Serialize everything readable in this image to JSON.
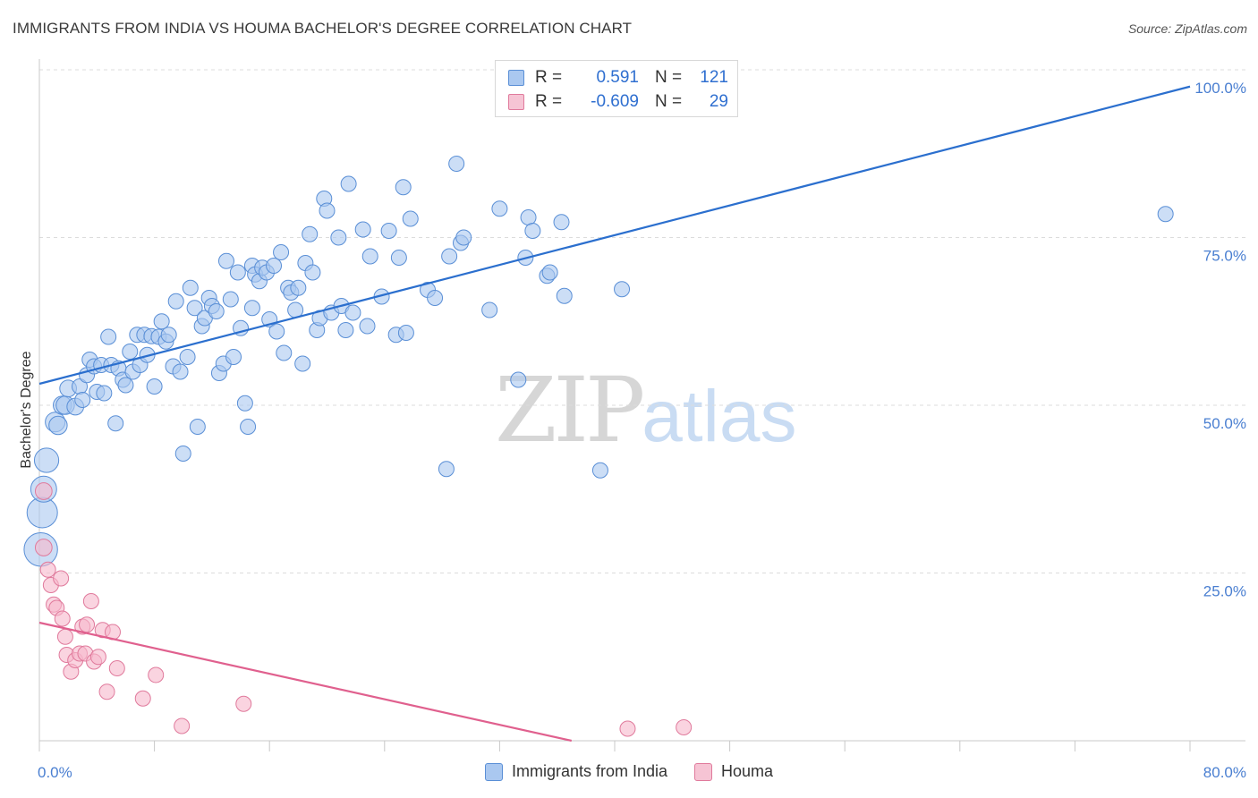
{
  "title": "IMMIGRANTS FROM INDIA VS HOUMA BACHELOR'S DEGREE CORRELATION CHART",
  "source": "Source: ZipAtlas.com",
  "watermark": {
    "zip": "ZIP",
    "atlas": "atlas"
  },
  "legend": {
    "row1": {
      "r_label": "R =",
      "r_value": "0.591",
      "n_label": "N =",
      "n_value": "121"
    },
    "row2": {
      "r_label": "R =",
      "r_value": "-0.609",
      "n_label": "N =",
      "n_value": "29"
    }
  },
  "bottom_legend": {
    "india": "Immigrants from India",
    "houma": "Houma"
  },
  "colors": {
    "india_fill": "#aac8f0",
    "india_stroke": "#5a8fd6",
    "india_line": "#2b6fce",
    "houma_fill": "#f6b8cc",
    "houma_stroke": "#e07a9c",
    "houma_line": "#e0608e",
    "grid": "#dcdcdc",
    "tick_text": "#4a7fd1"
  },
  "chart_data": {
    "type": "scatter",
    "title": "IMMIGRANTS FROM INDIA VS HOUMA BACHELOR'S DEGREE CORRELATION CHART",
    "xlabel": "",
    "ylabel": "Bachelor's Degree",
    "xlim": [
      0,
      80
    ],
    "ylim": [
      0,
      100
    ],
    "x_tick_labels": [
      "0.0%",
      "80.0%"
    ],
    "y_tick_labels": [
      "25.0%",
      "50.0%",
      "75.0%",
      "100.0%"
    ],
    "y_ticks": [
      25,
      50,
      75,
      100
    ],
    "grid": true,
    "legend_position": "top-center",
    "series": [
      {
        "name": "Immigrants from India",
        "trend": {
          "x0": 0,
          "y0": 53.2,
          "x1": 80,
          "y1": 97.5
        },
        "points": [
          [
            0.1,
            28.5,
            2.2
          ],
          [
            0.2,
            34.0,
            2.0
          ],
          [
            0.3,
            37.5,
            1.7
          ],
          [
            0.5,
            41.8,
            1.6
          ],
          [
            1.1,
            47.5,
            1.3
          ],
          [
            1.3,
            47.0,
            1.2
          ],
          [
            1.6,
            50.0,
            1.2
          ],
          [
            1.8,
            50.0,
            1.2
          ],
          [
            2.0,
            52.5,
            1.1
          ],
          [
            2.5,
            49.8,
            1.1
          ],
          [
            2.8,
            52.8,
            1.0
          ],
          [
            3.0,
            50.8,
            1.0
          ],
          [
            3.3,
            54.5,
            1.0
          ],
          [
            3.5,
            56.8,
            1.0
          ],
          [
            3.8,
            55.8,
            1.0
          ],
          [
            4.0,
            52.0,
            1.0
          ],
          [
            4.3,
            56.0,
            1.0
          ],
          [
            4.5,
            51.8,
            1.0
          ],
          [
            4.8,
            60.2,
            1.0
          ],
          [
            5.0,
            56.0,
            1.0
          ],
          [
            5.3,
            47.3,
            1.0
          ],
          [
            5.5,
            55.5,
            1.0
          ],
          [
            5.8,
            53.8,
            1.0
          ],
          [
            6.0,
            53.0,
            1.0
          ],
          [
            6.3,
            58.0,
            1.0
          ],
          [
            6.5,
            55.0,
            1.0
          ],
          [
            6.8,
            60.5,
            1.0
          ],
          [
            7.0,
            56.0,
            1.0
          ],
          [
            7.3,
            60.5,
            1.0
          ],
          [
            7.5,
            57.5,
            1.0
          ],
          [
            7.8,
            60.3,
            1.0
          ],
          [
            8.0,
            52.8,
            1.0
          ],
          [
            8.3,
            60.2,
            1.0
          ],
          [
            8.5,
            62.5,
            1.0
          ],
          [
            8.8,
            59.5,
            1.0
          ],
          [
            9.0,
            60.5,
            1.0
          ],
          [
            9.3,
            55.8,
            1.0
          ],
          [
            9.5,
            65.5,
            1.0
          ],
          [
            9.8,
            55.0,
            1.0
          ],
          [
            10.0,
            42.8,
            1.0
          ],
          [
            10.3,
            57.2,
            1.0
          ],
          [
            10.5,
            67.5,
            1.0
          ],
          [
            10.8,
            64.5,
            1.0
          ],
          [
            11.0,
            46.8,
            1.0
          ],
          [
            11.3,
            61.8,
            1.0
          ],
          [
            11.5,
            63.0,
            1.0
          ],
          [
            11.8,
            66.0,
            1.0
          ],
          [
            12.0,
            64.8,
            1.0
          ],
          [
            12.3,
            64.0,
            1.0
          ],
          [
            12.5,
            54.8,
            1.0
          ],
          [
            12.8,
            56.2,
            1.0
          ],
          [
            13.0,
            71.5,
            1.0
          ],
          [
            13.3,
            65.8,
            1.0
          ],
          [
            13.5,
            57.2,
            1.0
          ],
          [
            13.8,
            69.8,
            1.0
          ],
          [
            14.0,
            61.5,
            1.0
          ],
          [
            14.3,
            50.3,
            1.0
          ],
          [
            14.5,
            46.8,
            1.0
          ],
          [
            14.8,
            64.5,
            1.0
          ],
          [
            14.8,
            70.8,
            1.0
          ],
          [
            15.0,
            69.5,
            1.0
          ],
          [
            15.3,
            68.5,
            1.0
          ],
          [
            15.5,
            70.5,
            1.0
          ],
          [
            15.8,
            69.8,
            1.0
          ],
          [
            16.0,
            62.8,
            1.0
          ],
          [
            16.3,
            70.8,
            1.0
          ],
          [
            16.5,
            61.0,
            1.0
          ],
          [
            16.8,
            72.8,
            1.0
          ],
          [
            17.0,
            57.8,
            1.0
          ],
          [
            17.3,
            67.5,
            1.0
          ],
          [
            17.5,
            66.8,
            1.0
          ],
          [
            17.8,
            64.2,
            1.0
          ],
          [
            18.0,
            67.5,
            1.0
          ],
          [
            18.3,
            56.2,
            1.0
          ],
          [
            18.5,
            71.2,
            1.0
          ],
          [
            18.8,
            75.5,
            1.0
          ],
          [
            19.0,
            69.8,
            1.0
          ],
          [
            19.3,
            61.2,
            1.0
          ],
          [
            19.5,
            63.0,
            1.0
          ],
          [
            19.8,
            80.8,
            1.0
          ],
          [
            20.0,
            79.0,
            1.0
          ],
          [
            20.3,
            63.8,
            1.0
          ],
          [
            20.8,
            75.0,
            1.0
          ],
          [
            21.0,
            64.8,
            1.0
          ],
          [
            21.3,
            61.2,
            1.0
          ],
          [
            21.5,
            83.0,
            1.0
          ],
          [
            21.8,
            63.8,
            1.0
          ],
          [
            22.5,
            76.2,
            1.0
          ],
          [
            22.8,
            61.8,
            1.0
          ],
          [
            23.0,
            72.2,
            1.0
          ],
          [
            23.8,
            66.2,
            1.0
          ],
          [
            24.3,
            76.0,
            1.0
          ],
          [
            24.8,
            60.5,
            1.0
          ],
          [
            25.0,
            72.0,
            1.0
          ],
          [
            25.3,
            82.5,
            1.0
          ],
          [
            25.5,
            60.8,
            1.0
          ],
          [
            25.8,
            77.8,
            1.0
          ],
          [
            27.0,
            67.2,
            1.0
          ],
          [
            27.5,
            66.0,
            1.0
          ],
          [
            28.3,
            40.5,
            1.0
          ],
          [
            28.5,
            72.2,
            1.0
          ],
          [
            29.0,
            86.0,
            1.0
          ],
          [
            29.3,
            74.2,
            1.0
          ],
          [
            29.5,
            75.0,
            1.0
          ],
          [
            31.3,
            64.2,
            1.0
          ],
          [
            32.0,
            79.3,
            1.0
          ],
          [
            33.3,
            53.8,
            1.0
          ],
          [
            33.8,
            72.0,
            1.0
          ],
          [
            34.0,
            78.0,
            1.0
          ],
          [
            34.3,
            76.0,
            1.0
          ],
          [
            35.3,
            69.3,
            1.0
          ],
          [
            35.5,
            69.8,
            1.0
          ],
          [
            36.3,
            77.3,
            1.0
          ],
          [
            36.5,
            66.3,
            1.0
          ],
          [
            39.0,
            40.3,
            1.0
          ],
          [
            40.5,
            67.3,
            1.0
          ],
          [
            78.3,
            78.5,
            1.0
          ]
        ]
      },
      {
        "name": "Houma",
        "trend": {
          "x0": 0,
          "y0": 17.6,
          "x1": 37,
          "y1": 0.0
        },
        "points": [
          [
            0.3,
            37.2,
            1.1
          ],
          [
            0.3,
            28.8,
            1.1
          ],
          [
            0.6,
            25.5,
            1.0
          ],
          [
            0.8,
            23.2,
            1.0
          ],
          [
            1.0,
            20.3,
            1.0
          ],
          [
            1.2,
            19.8,
            1.0
          ],
          [
            1.5,
            24.2,
            1.0
          ],
          [
            1.6,
            18.2,
            1.0
          ],
          [
            1.8,
            15.5,
            1.0
          ],
          [
            1.9,
            12.8,
            1.0
          ],
          [
            2.2,
            10.3,
            1.0
          ],
          [
            2.5,
            12.0,
            1.0
          ],
          [
            2.8,
            13.0,
            1.0
          ],
          [
            3.0,
            17.0,
            1.0
          ],
          [
            3.2,
            13.0,
            1.0
          ],
          [
            3.3,
            17.3,
            1.0
          ],
          [
            3.6,
            20.8,
            1.0
          ],
          [
            3.8,
            11.8,
            1.0
          ],
          [
            4.1,
            12.5,
            1.0
          ],
          [
            4.4,
            16.5,
            1.0
          ],
          [
            4.7,
            7.3,
            1.0
          ],
          [
            5.1,
            16.2,
            1.0
          ],
          [
            5.4,
            10.8,
            1.0
          ],
          [
            7.2,
            6.3,
            1.0
          ],
          [
            8.1,
            9.8,
            1.0
          ],
          [
            9.9,
            2.2,
            1.0
          ],
          [
            14.2,
            5.5,
            1.0
          ],
          [
            40.9,
            1.8,
            1.0
          ],
          [
            44.8,
            2.0,
            1.0
          ]
        ]
      }
    ]
  }
}
